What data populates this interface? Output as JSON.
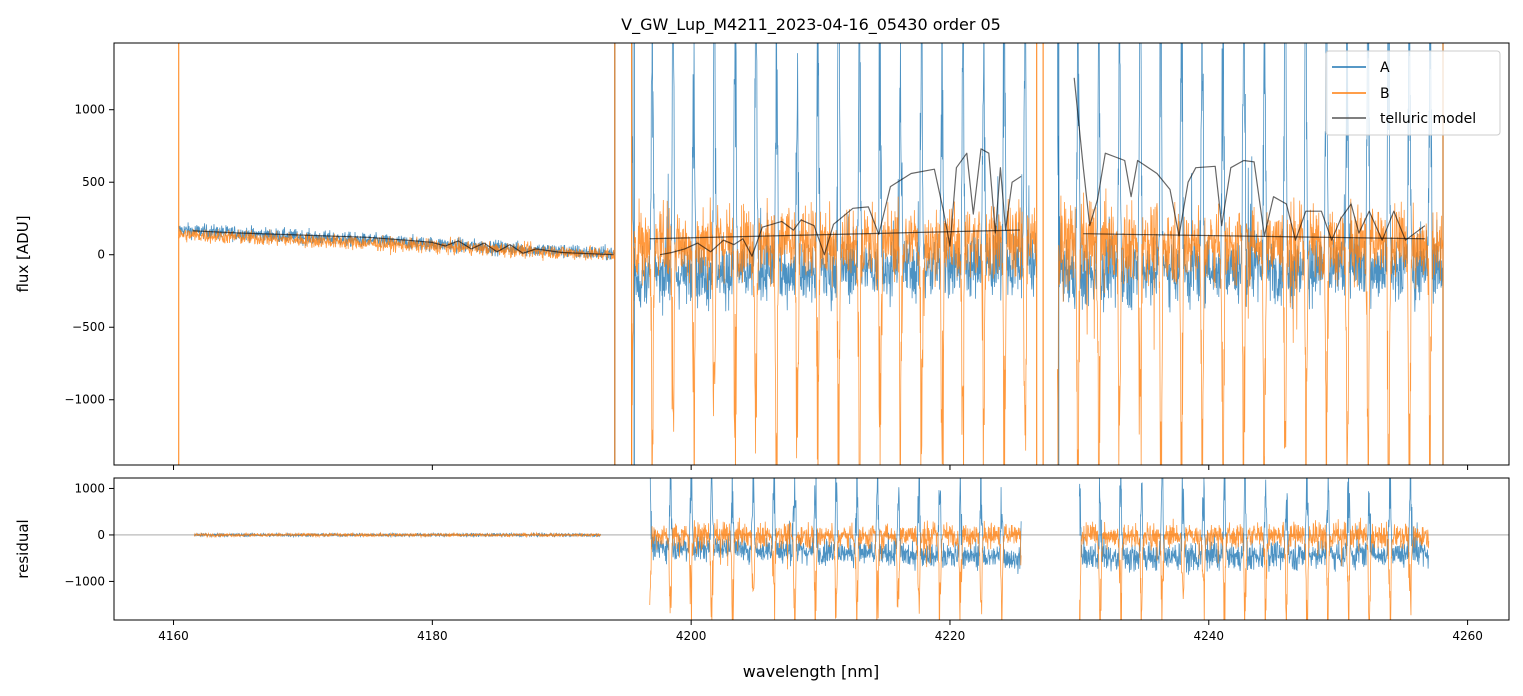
{
  "chart_data": [
    {
      "type": "line",
      "title": "V_GW_Lup_M4211_2023-04-16_05430  order 05",
      "xlabel": "",
      "ylabel": "flux [ADU]",
      "xlim": [
        4155.4,
        4263.2
      ],
      "ylim": [
        -1450,
        1460
      ],
      "xticks": [
        4160,
        4180,
        4200,
        4220,
        4240,
        4260
      ],
      "yticks": [
        1000,
        500,
        0,
        -500,
        -1000
      ],
      "ytick_labels": [
        "1000",
        "500",
        "0",
        "−500",
        "−1000"
      ],
      "legend": {
        "placement": "top-right",
        "entries": [
          "A",
          "B",
          "telluric model"
        ]
      },
      "series": [
        {
          "name": "A",
          "color": "#1f77b4",
          "segments": [
            {
              "range": [
                4160.4,
                4194.1
              ],
              "base": [
                170,
                5
              ],
              "noise": 25,
              "line_amp": 0
            },
            {
              "range": [
                4195.4,
                4226.7
              ],
              "base": [
                -150,
                -60
              ],
              "noise": 110,
              "line_amp": 1800
            },
            {
              "range": [
                4228.3,
                4258.1
              ],
              "base": [
                -120,
                -80
              ],
              "noise": 120,
              "line_amp": 2000
            }
          ],
          "edge_spikes": [
            4194.1,
            4195.6,
            4228.4,
            4258.1
          ]
        },
        {
          "name": "B",
          "color": "#ff7f0e",
          "segments": [
            {
              "range": [
                4160.4,
                4194.1
              ],
              "base": [
                140,
                0
              ],
              "noise": 25,
              "line_amp": 0
            },
            {
              "range": [
                4195.4,
                4226.7
              ],
              "base": [
                80,
                100
              ],
              "noise": 130,
              "line_amp": -1600
            },
            {
              "range": [
                4228.3,
                4258.1
              ],
              "base": [
                90,
                80
              ],
              "noise": 130,
              "line_amp": -1700
            }
          ],
          "edge_spikes": [
            4160.4,
            4194.1,
            4195.4,
            4226.7,
            4227.2,
            4258.1
          ]
        },
        {
          "name": "telluric model",
          "color": "#000000",
          "curves": [
            [
              [
                4161.5,
                165
              ],
              [
                4165,
                150
              ],
              [
                4170,
                135
              ],
              [
                4175,
                120
              ],
              [
                4178,
                100
              ],
              [
                4180,
                85
              ],
              [
                4181,
                60
              ],
              [
                4182,
                95
              ],
              [
                4183,
                40
              ],
              [
                4184,
                80
              ],
              [
                4185,
                20
              ],
              [
                4186,
                70
              ],
              [
                4187,
                10
              ],
              [
                4188,
                40
              ],
              [
                4190,
                15
              ],
              [
                4194,
                0
              ]
            ],
            [
              [
                4197.6,
                0
              ],
              [
                4198.5,
                15
              ],
              [
                4199.5,
                40
              ],
              [
                4200.5,
                80
              ],
              [
                4201.5,
                20
              ],
              [
                4202.5,
                100
              ],
              [
                4203.3,
                70
              ],
              [
                4204,
                110
              ],
              [
                4204.7,
                -10
              ],
              [
                4205.5,
                190
              ],
              [
                4207,
                230
              ],
              [
                4207.9,
                170
              ],
              [
                4208.5,
                240
              ],
              [
                4209.5,
                200
              ],
              [
                4210.3,
                0
              ],
              [
                4211,
                210
              ],
              [
                4212.5,
                320
              ],
              [
                4213.7,
                330
              ],
              [
                4214.5,
                140
              ],
              [
                4215.4,
                470
              ],
              [
                4217,
                560
              ],
              [
                4218.8,
                590
              ],
              [
                4219.5,
                300
              ],
              [
                4220,
                60
              ],
              [
                4220.5,
                600
              ],
              [
                4221.3,
                700
              ],
              [
                4221.8,
                280
              ],
              [
                4222.4,
                730
              ],
              [
                4223,
                700
              ],
              [
                4223.5,
                150
              ],
              [
                4223.9,
                600
              ],
              [
                4224.3,
                170
              ],
              [
                4224.8,
                500
              ],
              [
                4225.5,
                540
              ]
            ],
            [
              [
                4229.6,
                1220
              ],
              [
                4230.3,
                600
              ],
              [
                4230.8,
                200
              ],
              [
                4231.4,
                380
              ],
              [
                4232,
                700
              ],
              [
                4233.5,
                650
              ],
              [
                4234,
                400
              ],
              [
                4234.5,
                650
              ],
              [
                4236,
                560
              ],
              [
                4237,
                450
              ],
              [
                4237.7,
                130
              ],
              [
                4238.4,
                500
              ],
              [
                4239,
                600
              ],
              [
                4240.5,
                610
              ],
              [
                4241,
                200
              ],
              [
                4241.7,
                600
              ],
              [
                4242.7,
                650
              ],
              [
                4243.5,
                640
              ],
              [
                4244.3,
                130
              ],
              [
                4245,
                400
              ],
              [
                4246,
                350
              ],
              [
                4246.7,
                100
              ],
              [
                4247.5,
                300
              ],
              [
                4248.7,
                300
              ],
              [
                4249.5,
                100
              ],
              [
                4250.2,
                250
              ],
              [
                4251,
                350
              ],
              [
                4251.6,
                150
              ],
              [
                4252.4,
                300
              ],
              [
                4253.4,
                100
              ],
              [
                4254.3,
                300
              ],
              [
                4255.2,
                100
              ],
              [
                4256.7,
                200
              ]
            ]
          ],
          "continuum": [
            [
              [
                4196.8,
                110
              ],
              [
                4225.4,
                170
              ]
            ],
            [
              [
                4230.3,
                145
              ],
              [
                4256.7,
                110
              ]
            ]
          ]
        }
      ],
      "line_spacing_nm": 1.6
    },
    {
      "type": "line",
      "xlabel": "wavelength [nm]",
      "ylabel": "residual",
      "xlim": [
        4155.4,
        4263.2
      ],
      "ylim": [
        -1830,
        1225
      ],
      "xticks": [
        4160,
        4180,
        4200,
        4220,
        4240,
        4260
      ],
      "xtick_labels": [
        "4160",
        "4180",
        "4200",
        "4220",
        "4240",
        "4260"
      ],
      "yticks": [
        1000,
        0,
        -1000
      ],
      "ytick_labels": [
        "1000",
        "0",
        "−1000"
      ],
      "zero_line": 0,
      "series": [
        {
          "name": "A",
          "color": "#1f77b4",
          "segments": [
            {
              "range": [
                4161.6,
                4193.0
              ],
              "base": [
                0,
                0
              ],
              "noise": 18,
              "line_amp": 0
            },
            {
              "range": [
                4196.8,
                4225.5
              ],
              "base": [
                -250,
                -500
              ],
              "noise": 140,
              "line_amp": 1600
            },
            {
              "range": [
                4230.0,
                4257.0
              ],
              "base": [
                -500,
                -400
              ],
              "noise": 150,
              "line_amp": 1700
            }
          ]
        },
        {
          "name": "B",
          "color": "#ff7f0e",
          "segments": [
            {
              "range": [
                4161.6,
                4193.0
              ],
              "base": [
                0,
                0
              ],
              "noise": 18,
              "line_amp": 0
            },
            {
              "range": [
                4196.8,
                4225.5
              ],
              "base": [
                0,
                0
              ],
              "noise": 130,
              "line_amp": -1700
            },
            {
              "range": [
                4230.0,
                4257.0
              ],
              "base": [
                0,
                0
              ],
              "noise": 130,
              "line_amp": -1800
            }
          ]
        }
      ]
    }
  ]
}
